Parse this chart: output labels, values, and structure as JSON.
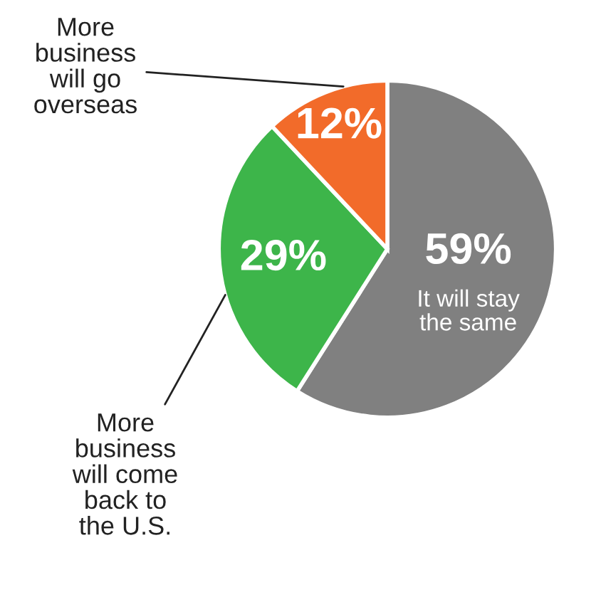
{
  "chart_data": {
    "type": "pie",
    "categories": [
      "It will stay\nthe same",
      "More\nbusiness\nwill come\nback to\nthe U.S.",
      "More\nbusiness\nwill go\noverseas"
    ],
    "values": [
      59,
      29,
      12
    ],
    "value_labels": [
      "59%",
      "29%",
      "12%"
    ],
    "colors": [
      "#808080",
      "#3db54a",
      "#f26b2a"
    ]
  }
}
